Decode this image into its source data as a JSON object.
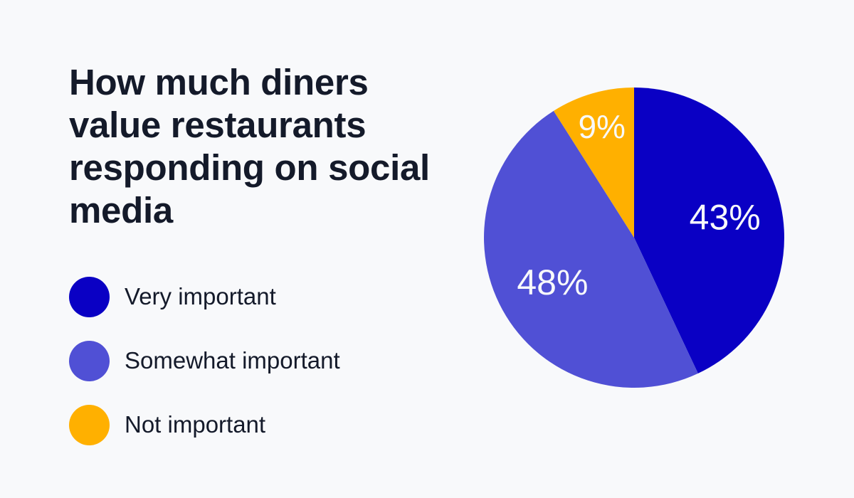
{
  "title": "How much diners value restaurants responding on social media",
  "legend": [
    {
      "label": "Very important",
      "color": "#0A00C4"
    },
    {
      "label": "Somewhat important",
      "color": "#5050D5"
    },
    {
      "label": "Not important",
      "color": "#FFB000"
    }
  ],
  "chart_data": {
    "type": "pie",
    "title": "How much diners value restaurants responding on social media",
    "categories": [
      "Very important",
      "Somewhat important",
      "Not important"
    ],
    "values": [
      43,
      48,
      9
    ],
    "labels": [
      "43%",
      "48%",
      "9%"
    ],
    "colors": [
      "#0A00C4",
      "#5050D5",
      "#FFB000"
    ],
    "start_angle_deg": 0,
    "direction": "clockwise",
    "legend_position": "left"
  }
}
